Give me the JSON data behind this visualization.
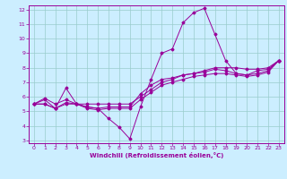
{
  "title": "",
  "xlabel": "Windchill (Refroidissement éolien,°C)",
  "ylabel": "",
  "xlim": [
    -0.5,
    23.5
  ],
  "ylim": [
    2.8,
    12.3
  ],
  "xticks": [
    0,
    1,
    2,
    3,
    4,
    5,
    6,
    7,
    8,
    9,
    10,
    11,
    12,
    13,
    14,
    15,
    16,
    17,
    18,
    19,
    20,
    21,
    22,
    23
  ],
  "yticks": [
    3,
    4,
    5,
    6,
    7,
    8,
    9,
    10,
    11,
    12
  ],
  "bg_color": "#cceeff",
  "line_color": "#990099",
  "grid_color": "#99cccc",
  "lines": [
    [
      0,
      5.5,
      1,
      5.8,
      2,
      5.2,
      3,
      6.6,
      4,
      5.5,
      5,
      5.3,
      6,
      5.2,
      7,
      4.5,
      8,
      3.9,
      9,
      3.1,
      10,
      5.3,
      11,
      7.2,
      12,
      9.0,
      13,
      9.3,
      14,
      11.1,
      15,
      11.8,
      16,
      12.1,
      17,
      10.3,
      18,
      8.5,
      19,
      7.6,
      20,
      7.5,
      21,
      7.8,
      22,
      7.9,
      23,
      8.5
    ],
    [
      0,
      5.5,
      1,
      5.9,
      2,
      5.5,
      3,
      5.8,
      4,
      5.5,
      5,
      5.5,
      6,
      5.5,
      7,
      5.5,
      8,
      5.5,
      9,
      5.5,
      10,
      6.0,
      11,
      6.5,
      12,
      7.0,
      13,
      7.2,
      14,
      7.5,
      15,
      7.6,
      16,
      7.8,
      17,
      8.0,
      18,
      8.0,
      19,
      8.0,
      20,
      7.9,
      21,
      7.9,
      22,
      8.0,
      23,
      8.5
    ],
    [
      0,
      5.5,
      1,
      5.5,
      2,
      5.2,
      3,
      5.5,
      4,
      5.5,
      5,
      5.2,
      6,
      5.1,
      7,
      5.2,
      8,
      5.2,
      9,
      5.2,
      10,
      5.8,
      11,
      6.3,
      12,
      6.8,
      13,
      7.0,
      14,
      7.2,
      15,
      7.4,
      16,
      7.5,
      17,
      7.6,
      18,
      7.6,
      19,
      7.5,
      20,
      7.4,
      21,
      7.5,
      22,
      7.7,
      23,
      8.5
    ],
    [
      0,
      5.5,
      1,
      5.5,
      2,
      5.2,
      3,
      5.6,
      4,
      5.5,
      5,
      5.3,
      6,
      5.2,
      7,
      5.3,
      8,
      5.3,
      9,
      5.3,
      10,
      6.2,
      11,
      6.8,
      12,
      7.2,
      13,
      7.3,
      14,
      7.5,
      15,
      7.6,
      16,
      7.7,
      17,
      7.9,
      18,
      7.8,
      19,
      7.6,
      20,
      7.5,
      21,
      7.6,
      22,
      7.8,
      23,
      8.5
    ]
  ]
}
